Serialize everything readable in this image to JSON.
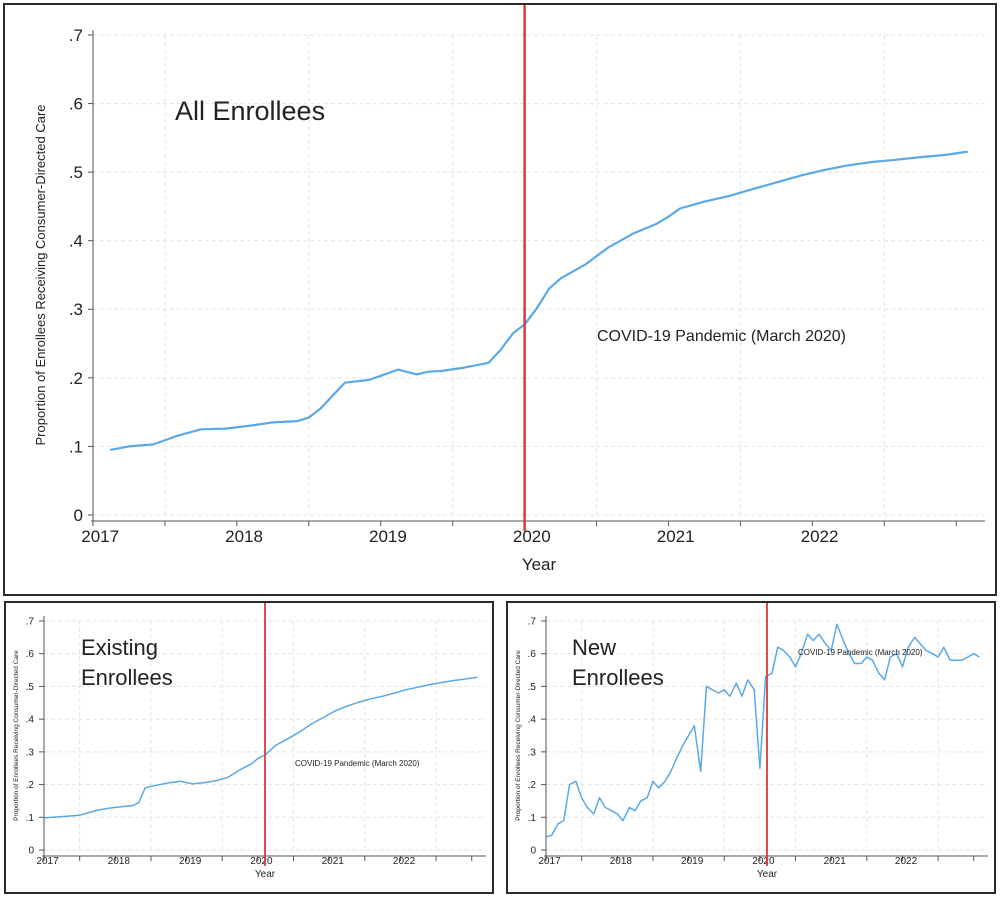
{
  "colors": {
    "series": "#5aa9e6",
    "event_line": "#d93b3b",
    "grid": "#e4e4e4",
    "axis": "#555555"
  },
  "chart_data": [
    {
      "type": "line",
      "panel_label": "All Enrollees",
      "xlabel": "Year",
      "ylabel": "Proportion of Enrollees Receiving Consumer-Directed Care",
      "xlim": [
        2017.0,
        2023.2
      ],
      "ylim": [
        0,
        0.7
      ],
      "ytick_labels": [
        "0",
        ".1",
        ".2",
        ".3",
        ".4",
        ".5",
        ".6",
        ".7"
      ],
      "xtick_labels": [
        "2017",
        "2018",
        "2019",
        "2020",
        "2021",
        "2022"
      ],
      "grid": true,
      "event": {
        "x": 2020.0,
        "label": "COVID-19 Pandemic (March 2020)"
      },
      "series": [
        {
          "x": [
            2017.12,
            2017.25,
            2017.42,
            2017.58,
            2017.75,
            2017.92,
            2018.08,
            2018.25,
            2018.42,
            2018.5,
            2018.58,
            2018.75,
            2018.92,
            2019.0,
            2019.12,
            2019.25,
            2019.33,
            2019.42,
            2019.58,
            2019.75,
            2019.83,
            2019.92,
            2020.0,
            2020.08,
            2020.17,
            2020.25,
            2020.42,
            2020.58,
            2020.75,
            2020.92,
            2021.0,
            2021.08,
            2021.25,
            2021.42,
            2021.58,
            2021.75,
            2021.92,
            2022.08,
            2022.25,
            2022.42,
            2022.58,
            2022.75,
            2022.92,
            2023.08
          ],
          "y": [
            0.095,
            0.1,
            0.103,
            0.115,
            0.125,
            0.126,
            0.13,
            0.135,
            0.137,
            0.142,
            0.155,
            0.193,
            0.197,
            0.203,
            0.212,
            0.205,
            0.209,
            0.21,
            0.215,
            0.222,
            0.24,
            0.265,
            0.278,
            0.3,
            0.33,
            0.345,
            0.365,
            0.39,
            0.41,
            0.425,
            0.435,
            0.447,
            0.457,
            0.465,
            0.475,
            0.485,
            0.495,
            0.503,
            0.51,
            0.515,
            0.518,
            0.522,
            0.525,
            0.53
          ]
        }
      ]
    },
    {
      "type": "line",
      "panel_label_lines": [
        "Existing",
        "Enrollees"
      ],
      "xlabel": "Year",
      "ylabel": "Proportion of Enrollees Receiving Consumer-Directed Care",
      "xlim": [
        2017.0,
        2023.2
      ],
      "ylim": [
        0,
        0.7
      ],
      "ytick_labels": [
        "0",
        ".1",
        ".2",
        ".3",
        ".4",
        ".5",
        ".6",
        ".7"
      ],
      "xtick_labels": [
        "2017",
        "2018",
        "2019",
        "2020",
        "2021",
        "2022"
      ],
      "grid": true,
      "event": {
        "x": 2020.1,
        "label": "COVID-19 Pandemic (March 2020)"
      },
      "series": [
        {
          "x": [
            2017.0,
            2017.25,
            2017.5,
            2017.75,
            2017.92,
            2018.08,
            2018.25,
            2018.33,
            2018.42,
            2018.58,
            2018.75,
            2018.92,
            2019.08,
            2019.25,
            2019.42,
            2019.58,
            2019.75,
            2019.92,
            2020.0,
            2020.1,
            2020.25,
            2020.42,
            2020.58,
            2020.75,
            2020.92,
            2021.08,
            2021.25,
            2021.42,
            2021.58,
            2021.75,
            2021.92,
            2022.08,
            2022.25,
            2022.42,
            2022.58,
            2022.75,
            2022.92,
            2023.08
          ],
          "y": [
            0.098,
            0.102,
            0.106,
            0.122,
            0.128,
            0.132,
            0.136,
            0.145,
            0.19,
            0.198,
            0.205,
            0.21,
            0.202,
            0.206,
            0.212,
            0.222,
            0.245,
            0.265,
            0.28,
            0.29,
            0.32,
            0.34,
            0.36,
            0.385,
            0.405,
            0.425,
            0.44,
            0.452,
            0.462,
            0.47,
            0.48,
            0.49,
            0.498,
            0.506,
            0.512,
            0.518,
            0.523,
            0.528
          ]
        }
      ]
    },
    {
      "type": "line",
      "panel_label_lines": [
        "New",
        "Enrollees"
      ],
      "xlabel": "Year",
      "ylabel": "Proportion of Enrollees Receiving Consumer-Directed Care",
      "xlim": [
        2017.0,
        2023.2
      ],
      "ylim": [
        0,
        0.7
      ],
      "ytick_labels": [
        "0",
        ".1",
        ".2",
        ".3",
        ".4",
        ".5",
        ".6",
        ".7"
      ],
      "xtick_labels": [
        "2017",
        "2018",
        "2019",
        "2020",
        "2021",
        "2022"
      ],
      "grid": true,
      "event": {
        "x": 2020.1,
        "label": "COVID-19 Pandemic (March 2020)"
      },
      "series": [
        {
          "x": [
            2017.0,
            2017.08,
            2017.17,
            2017.25,
            2017.33,
            2017.42,
            2017.5,
            2017.58,
            2017.67,
            2017.75,
            2017.83,
            2017.92,
            2018.0,
            2018.08,
            2018.17,
            2018.25,
            2018.33,
            2018.42,
            2018.5,
            2018.58,
            2018.67,
            2018.75,
            2018.83,
            2018.92,
            2019.0,
            2019.08,
            2019.17,
            2019.25,
            2019.33,
            2019.42,
            2019.5,
            2019.58,
            2019.67,
            2019.75,
            2019.83,
            2019.92,
            2020.0,
            2020.08,
            2020.17,
            2020.25,
            2020.33,
            2020.42,
            2020.5,
            2020.58,
            2020.67,
            2020.75,
            2020.83,
            2020.92,
            2021.0,
            2021.08,
            2021.17,
            2021.25,
            2021.33,
            2021.42,
            2021.5,
            2021.58,
            2021.67,
            2021.75,
            2021.83,
            2021.92,
            2022.0,
            2022.08,
            2022.17,
            2022.25,
            2022.33,
            2022.42,
            2022.5,
            2022.58,
            2022.67,
            2022.75,
            2022.83,
            2022.92,
            2023.0,
            2023.08
          ],
          "y": [
            0.04,
            0.045,
            0.08,
            0.09,
            0.2,
            0.21,
            0.16,
            0.13,
            0.11,
            0.16,
            0.13,
            0.12,
            0.11,
            0.09,
            0.13,
            0.12,
            0.15,
            0.16,
            0.21,
            0.19,
            0.21,
            0.24,
            0.28,
            0.32,
            0.35,
            0.38,
            0.24,
            0.5,
            0.49,
            0.48,
            0.49,
            0.47,
            0.51,
            0.47,
            0.52,
            0.49,
            0.25,
            0.53,
            0.54,
            0.62,
            0.61,
            0.59,
            0.56,
            0.6,
            0.66,
            0.64,
            0.66,
            0.63,
            0.61,
            0.69,
            0.64,
            0.6,
            0.57,
            0.57,
            0.59,
            0.58,
            0.54,
            0.52,
            0.59,
            0.6,
            0.56,
            0.62,
            0.65,
            0.63,
            0.61,
            0.6,
            0.59,
            0.62,
            0.58,
            0.58,
            0.58,
            0.59,
            0.6,
            0.59
          ]
        }
      ]
    }
  ]
}
